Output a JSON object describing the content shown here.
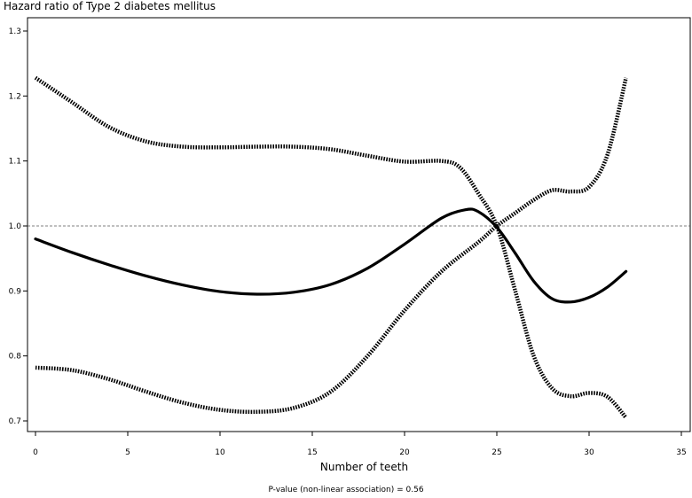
{
  "chart_data": {
    "type": "line",
    "title": "Hazard ratio of Type 2 diabetes mellitus",
    "xlabel": "Number of teeth",
    "ylabel": "",
    "xlim": [
      0,
      35
    ],
    "ylim": [
      0.68,
      1.31
    ],
    "x_ticks": [
      "0",
      "5",
      "10",
      "15",
      "20",
      "25",
      "30",
      "35"
    ],
    "y_ticks": [
      "0.7",
      "0.8",
      "0.9",
      "1.0",
      "1.1",
      "1.2",
      "1.3"
    ],
    "reference_line": 1.0,
    "annotation": "P-value (non-linear association) = 0.56",
    "legend": "none",
    "grid": false,
    "series": [
      {
        "style": "solid",
        "color": "#000000",
        "x": [
          0,
          2,
          4,
          6,
          8,
          10,
          12,
          14,
          16,
          18,
          20,
          22,
          23.3,
          24,
          25,
          26,
          27,
          28,
          29,
          30,
          31,
          32
        ],
        "y": [
          0.98,
          0.959,
          0.94,
          0.923,
          0.909,
          0.899,
          0.895,
          0.898,
          0.91,
          0.935,
          0.972,
          1.012,
          1.025,
          1.022,
          0.998,
          0.958,
          0.915,
          0.888,
          0.883,
          0.89,
          0.906,
          0.93
        ]
      },
      {
        "style": "dotted",
        "color": "#000000",
        "x": [
          0,
          2,
          4,
          6,
          8,
          10,
          12,
          14,
          16,
          18,
          20,
          22,
          23,
          24,
          25,
          26,
          27,
          28,
          29,
          30,
          31,
          32
        ],
        "y": [
          1.228,
          1.19,
          1.152,
          1.13,
          1.122,
          1.121,
          1.122,
          1.122,
          1.118,
          1.108,
          1.099,
          1.1,
          1.09,
          1.05,
          1.0,
          0.9,
          0.8,
          0.75,
          0.738,
          0.743,
          0.737,
          0.705
        ]
      },
      {
        "style": "dotted",
        "color": "#000000",
        "x": [
          0,
          2,
          4,
          6,
          8,
          10,
          12,
          14,
          16,
          18,
          20,
          22,
          24,
          25,
          26,
          27,
          28,
          29,
          30,
          31,
          32
        ],
        "y": [
          0.782,
          0.778,
          0.764,
          0.745,
          0.728,
          0.717,
          0.714,
          0.72,
          0.745,
          0.8,
          0.87,
          0.93,
          0.975,
          1.0,
          1.02,
          1.04,
          1.055,
          1.053,
          1.06,
          1.11,
          1.228
        ]
      }
    ]
  }
}
